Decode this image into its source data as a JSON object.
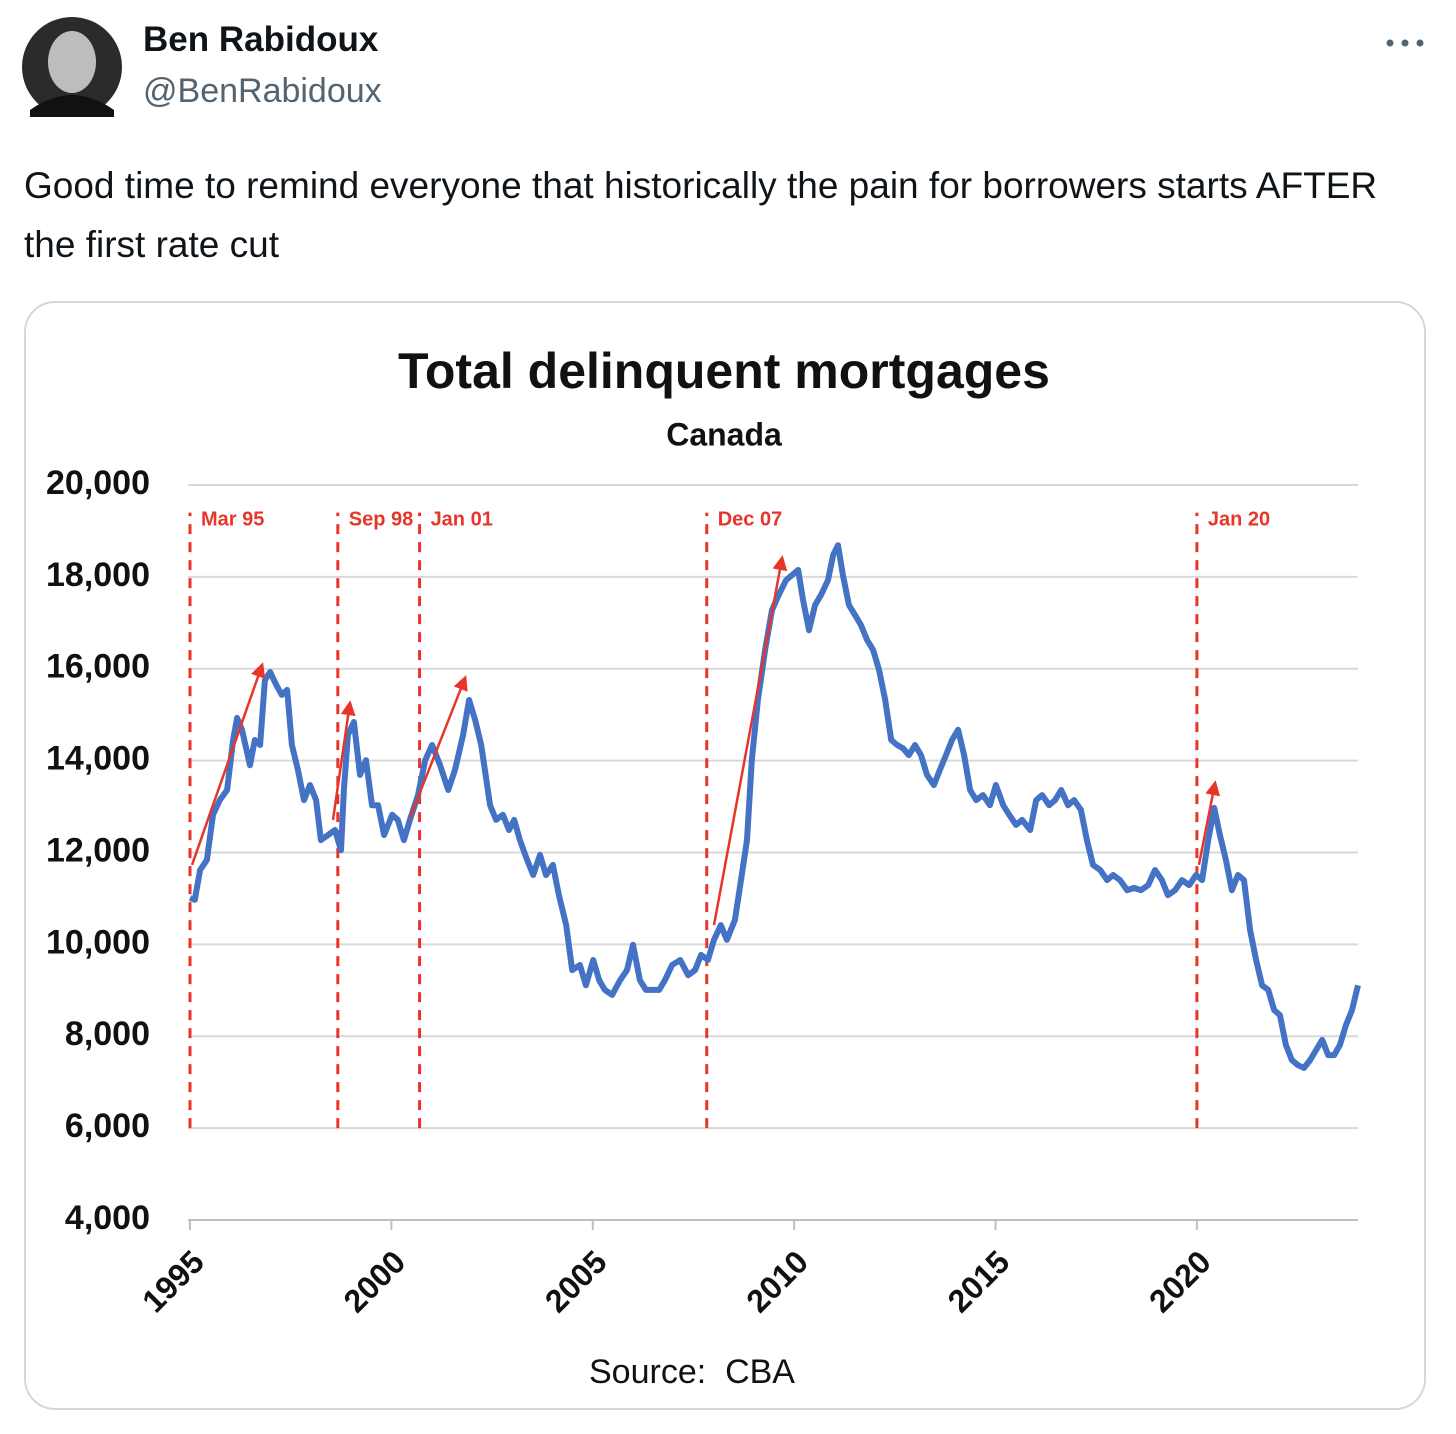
{
  "tweet": {
    "name": "Ben Rabidoux",
    "handle": "@BenRabidoux",
    "text": "Good time to remind everyone that historically the pain for borrowers starts AFTER the first rate cut"
  },
  "chart_data": {
    "type": "line",
    "title": "Total delinquent mortgages",
    "subtitle": "Canada",
    "source": "Source:  CBA",
    "xlim": [
      1995,
      2024
    ],
    "xticks": [
      1995,
      2000,
      2005,
      2010,
      2015,
      2020
    ],
    "ylim": [
      4000,
      20000
    ],
    "yticks": [
      {
        "value": 4000,
        "label": "4,000"
      },
      {
        "value": 6000,
        "label": "6,000"
      },
      {
        "value": 8000,
        "label": "8,000"
      },
      {
        "value": 10000,
        "label": "10,000"
      },
      {
        "value": 12000,
        "label": "12,000"
      },
      {
        "value": 14000,
        "label": "14,000"
      },
      {
        "value": 16000,
        "label": "16,000"
      },
      {
        "value": 18000,
        "label": "18,000"
      },
      {
        "value": 20000,
        "label": "20,000"
      }
    ],
    "grid": true,
    "series": [
      {
        "color": "#4472c4",
        "x": [
          1995.0,
          1995.12,
          1995.25,
          1995.42,
          1995.57,
          1995.74,
          1995.92,
          1996.07,
          1996.17,
          1996.29,
          1996.49,
          1996.61,
          1996.74,
          1996.86,
          1996.99,
          1997.14,
          1997.28,
          1997.41,
          1997.53,
          1997.68,
          1997.83,
          1997.98,
          1998.13,
          1998.25,
          1998.43,
          1998.6,
          1998.75,
          1998.82,
          1998.92,
          1999.07,
          1999.22,
          1999.37,
          1999.52,
          1999.67,
          1999.82,
          2000.02,
          2000.16,
          2000.31,
          2000.46,
          2000.66,
          2000.84,
          2001.01,
          2001.21,
          2001.41,
          2001.58,
          2001.78,
          2001.93,
          2002.08,
          2002.23,
          2002.45,
          2002.6,
          2002.77,
          2002.92,
          2003.05,
          2003.19,
          2003.37,
          2003.52,
          2003.69,
          2003.84,
          2004.01,
          2004.16,
          2004.34,
          2004.49,
          2004.68,
          2004.83,
          2005.01,
          2005.16,
          2005.3,
          2005.48,
          2005.68,
          2005.85,
          2006.0,
          2006.17,
          2006.32,
          2006.47,
          2006.65,
          2006.79,
          2006.97,
          2007.17,
          2007.37,
          2007.54,
          2007.69,
          2007.86,
          2008.01,
          2008.18,
          2008.33,
          2008.53,
          2008.68,
          2008.83,
          2008.95,
          2009.1,
          2009.28,
          2009.45,
          2009.62,
          2009.8,
          2009.95,
          2010.1,
          2010.22,
          2010.37,
          2010.52,
          2010.67,
          2010.84,
          2010.97,
          2011.09,
          2011.21,
          2011.36,
          2011.51,
          2011.66,
          2011.81,
          2011.96,
          2012.11,
          2012.26,
          2012.41,
          2012.56,
          2012.7,
          2012.85,
          2013.0,
          2013.15,
          2013.3,
          2013.47,
          2013.62,
          2013.77,
          2013.92,
          2014.07,
          2014.22,
          2014.37,
          2014.52,
          2014.69,
          2014.86,
          2015.01,
          2015.19,
          2015.34,
          2015.51,
          2015.66,
          2015.86,
          2016.01,
          2016.16,
          2016.33,
          2016.48,
          2016.63,
          2016.8,
          2016.95,
          2017.12,
          2017.27,
          2017.42,
          2017.6,
          2017.77,
          2017.92,
          2018.09,
          2018.27,
          2018.44,
          2018.61,
          2018.79,
          2018.96,
          2019.13,
          2019.28,
          2019.46,
          2019.63,
          2019.81,
          2019.98,
          2020.13,
          2020.28,
          2020.43,
          2020.57,
          2020.72,
          2020.87,
          2021.02,
          2021.17,
          2021.32,
          2021.47,
          2021.62,
          2021.77,
          2021.92,
          2022.06,
          2022.21,
          2022.36,
          2022.51,
          2022.66,
          2022.81,
          2022.96,
          2023.11,
          2023.26,
          2023.41,
          2023.55,
          2023.7,
          2023.85,
          2024.0
        ],
        "values": [
          11010,
          10970,
          11620,
          11840,
          12820,
          13140,
          13360,
          14450,
          14930,
          14670,
          13900,
          14450,
          14340,
          15750,
          15930,
          15650,
          15430,
          15540,
          14340,
          13800,
          13140,
          13470,
          13140,
          12270,
          12380,
          12490,
          12050,
          13360,
          14560,
          14840,
          13690,
          14010,
          13030,
          13030,
          12380,
          12820,
          12710,
          12270,
          12710,
          13250,
          14010,
          14340,
          13900,
          13360,
          13800,
          14560,
          15320,
          14880,
          14340,
          13030,
          12710,
          12820,
          12490,
          12710,
          12270,
          11840,
          11510,
          11950,
          11510,
          11730,
          11070,
          10420,
          9440,
          9550,
          9110,
          9660,
          9220,
          9010,
          8900,
          9220,
          9440,
          9990,
          9220,
          9010,
          9010,
          9010,
          9220,
          9550,
          9660,
          9330,
          9440,
          9770,
          9660,
          10100,
          10420,
          10100,
          10530,
          11400,
          12270,
          14010,
          15320,
          16410,
          17280,
          17610,
          17930,
          18040,
          18150,
          17500,
          16840,
          17390,
          17610,
          17930,
          18480,
          18690,
          18040,
          17390,
          17170,
          16950,
          16630,
          16410,
          15970,
          15320,
          14450,
          14340,
          14270,
          14120,
          14340,
          14120,
          13690,
          13470,
          13800,
          14120,
          14450,
          14670,
          14120,
          13360,
          13140,
          13250,
          13030,
          13470,
          13030,
          12820,
          12600,
          12710,
          12490,
          13140,
          13250,
          13030,
          13140,
          13360,
          13030,
          13140,
          12930,
          12270,
          11730,
          11620,
          11400,
          11510,
          11400,
          11180,
          11230,
          11180,
          11290,
          11620,
          11400,
          11070,
          11180,
          11400,
          11290,
          11510,
          11400,
          12270,
          12970,
          12380,
          11840,
          11180,
          11510,
          11400,
          10310,
          9660,
          9110,
          9010,
          8570,
          8460,
          7810,
          7480,
          7370,
          7310,
          7480,
          7700,
          7920,
          7590,
          7590,
          7810,
          8240,
          8570,
          9110
        ]
      }
    ],
    "annotation_color": "#e8352a",
    "annotation_span": [
      6000,
      19400
    ],
    "annotations": [
      {
        "label": "Mar 95",
        "x": 1995.0
      },
      {
        "label": "Sep 98",
        "x": 1998.67
      },
      {
        "label": "Jan 01",
        "x": 2000.7
      },
      {
        "label": "Dec 07",
        "x": 2007.83
      },
      {
        "label": "Jan 20",
        "x": 2020.0
      }
    ],
    "arrows": [
      {
        "x": [
          1995.05,
          1996.79
        ],
        "y": [
          11730,
          16080
        ]
      },
      {
        "x": [
          1998.55,
          1998.97
        ],
        "y": [
          12710,
          15250
        ]
      },
      {
        "x": [
          2000.46,
          2001.83
        ],
        "y": [
          12750,
          15800
        ]
      },
      {
        "x": [
          2008.01,
          2009.7
        ],
        "y": [
          10420,
          18410
        ]
      },
      {
        "x": [
          2020.05,
          2020.45
        ],
        "y": [
          11730,
          13510
        ]
      }
    ]
  }
}
